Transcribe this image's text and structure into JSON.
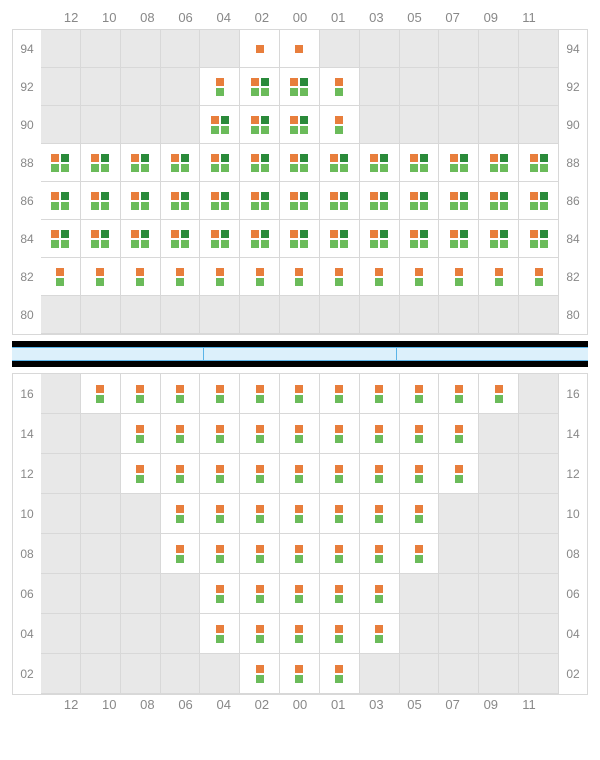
{
  "layout": {
    "columns": [
      "12",
      "10",
      "08",
      "06",
      "04",
      "02",
      "00",
      "01",
      "03",
      "05",
      "07",
      "09",
      "11"
    ],
    "colors": {
      "orange": "#e87e3c",
      "green_light": "#6bbb5a",
      "green_dark": "#2a8a3a",
      "cell_empty": "#e8e8e8",
      "cell_filled": "#ffffff",
      "grid_line": "#d8d8d8",
      "label": "#888888",
      "black": "#000000",
      "blue_fill": "#dcf0fb",
      "blue_border": "#5ab4e8"
    },
    "upper": {
      "rows": [
        "94",
        "92",
        "90",
        "88",
        "86",
        "84",
        "82",
        "80"
      ],
      "cells": {
        "94": {
          "02": "A",
          "00": "A"
        },
        "92": {
          "04": "B",
          "02": "C",
          "00": "C",
          "01": "B"
        },
        "90": {
          "04": "C",
          "02": "C",
          "00": "C",
          "01": "B"
        },
        "88": {
          "12": "C",
          "10": "C",
          "08": "C",
          "06": "C",
          "04": "C",
          "02": "C",
          "00": "C",
          "01": "C",
          "03": "C",
          "05": "C",
          "07": "C",
          "09": "C",
          "11": "C"
        },
        "86": {
          "12": "C",
          "10": "C",
          "08": "C",
          "06": "C",
          "04": "C",
          "02": "C",
          "00": "C",
          "01": "C",
          "03": "C",
          "05": "C",
          "07": "C",
          "09": "C",
          "11": "C"
        },
        "84": {
          "12": "C",
          "10": "C",
          "08": "C",
          "06": "C",
          "04": "C",
          "02": "C",
          "00": "C",
          "01": "C",
          "03": "C",
          "05": "C",
          "07": "C",
          "09": "C",
          "11": "C"
        },
        "82": {
          "12": "B",
          "10": "B",
          "08": "B",
          "06": "B",
          "04": "B",
          "02": "B",
          "00": "B",
          "01": "B",
          "03": "B",
          "05": "B",
          "07": "B",
          "09": "B",
          "11": "B"
        },
        "80": {}
      }
    },
    "lower": {
      "rows": [
        "16",
        "14",
        "12",
        "10",
        "08",
        "06",
        "04",
        "02"
      ],
      "cells": {
        "16": {
          "10": "B",
          "08": "B",
          "06": "B",
          "04": "B",
          "02": "B",
          "00": "B",
          "01": "B",
          "03": "B",
          "05": "B",
          "07": "B",
          "09": "B"
        },
        "14": {
          "08": "B",
          "06": "B",
          "04": "B",
          "02": "B",
          "00": "B",
          "01": "B",
          "03": "B",
          "05": "B",
          "07": "B"
        },
        "12": {
          "08": "B",
          "06": "B",
          "04": "B",
          "02": "B",
          "00": "B",
          "01": "B",
          "03": "B",
          "05": "B",
          "07": "B"
        },
        "10": {
          "06": "B",
          "04": "B",
          "02": "B",
          "00": "B",
          "01": "B",
          "03": "B",
          "05": "B"
        },
        "08": {
          "06": "B",
          "04": "B",
          "02": "B",
          "00": "B",
          "01": "B",
          "03": "B",
          "05": "B"
        },
        "06": {
          "04": "B",
          "02": "B",
          "00": "B",
          "01": "B",
          "03": "B"
        },
        "04": {
          "04": "B",
          "02": "B",
          "00": "B",
          "01": "B",
          "03": "B"
        },
        "02": {
          "02": "B",
          "00": "B",
          "01": "B"
        }
      }
    },
    "divider_segments": 3,
    "cell_height_upper": 38,
    "cell_height_lower": 40
  }
}
